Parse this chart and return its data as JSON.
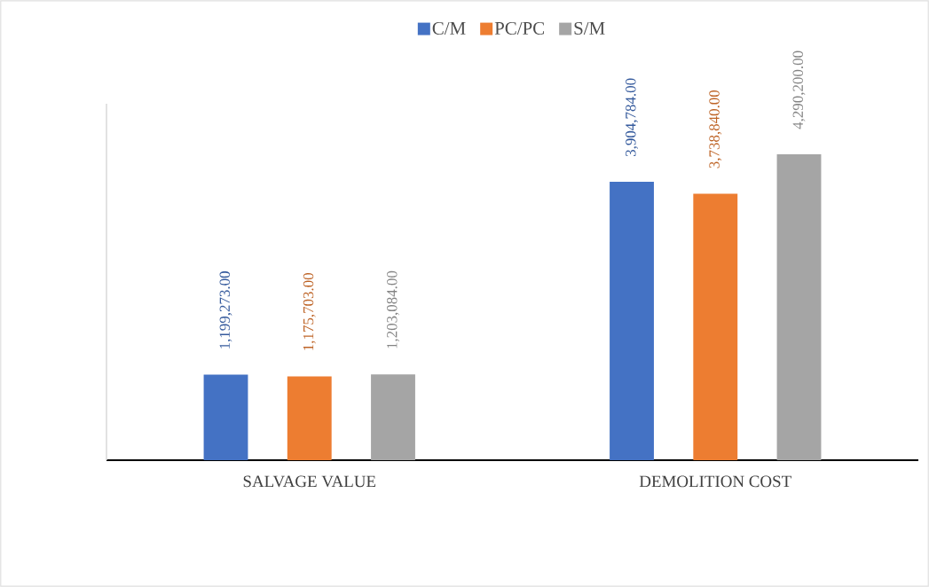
{
  "chart_data": {
    "type": "bar",
    "categories": [
      "SALVAGE VALUE",
      "DEMOLITION COST"
    ],
    "series": [
      {
        "name": "C/M",
        "color": "#4472c4",
        "values": [
          1199273,
          3904784
        ],
        "value_labels": [
          "1,199,273.00",
          "3,904,784.00"
        ]
      },
      {
        "name": "PC/PC",
        "color": "#ed7d31",
        "values": [
          1175703,
          3738840
        ],
        "value_labels": [
          "1,175,703.00",
          "3,738,840.00"
        ]
      },
      {
        "name": "S/M",
        "color": "#a5a5a5",
        "values": [
          1203084,
          4290200
        ],
        "value_labels": [
          "1,203,084.00",
          "4,290,200.00"
        ]
      }
    ],
    "ylim": [
      0,
      5000000
    ],
    "tick_labels": "x",
    "legend": "top",
    "grid": false
  }
}
